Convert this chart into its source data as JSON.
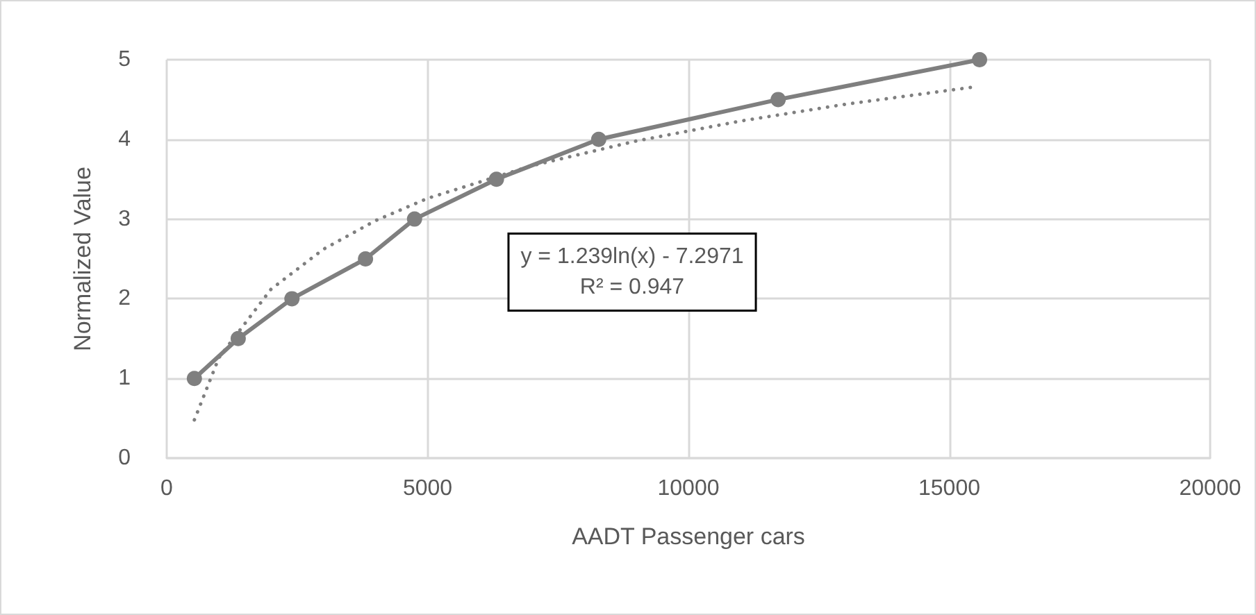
{
  "chart_data": {
    "type": "line",
    "xlabel": "AADT Passenger cars",
    "ylabel": "Normalized Value",
    "xlim": [
      0,
      20000
    ],
    "xticks": [
      0,
      5000,
      10000,
      15000,
      20000
    ],
    "ylim": [
      0,
      5
    ],
    "yticks": [
      0,
      1,
      2,
      3,
      4,
      5
    ],
    "grid": true,
    "series": [
      {
        "color": "#7f7f7f",
        "marker": "circle",
        "line_style": "solid",
        "x": [
          530,
          1370,
          2400,
          3810,
          4750,
          6320,
          8280,
          11720,
          15580
        ],
        "values": [
          1,
          1.5,
          2,
          2.5,
          3,
          3.5,
          4,
          4.5,
          5
        ]
      },
      {
        "color": "#7f7f7f",
        "marker": "none",
        "line_style": "dotted",
        "x": [
          530,
          1000,
          2000,
          3000,
          4000,
          5000,
          7000,
          9000,
          11000,
          13000,
          15500
        ],
        "values": [
          0.48,
          1.26,
          2.12,
          2.62,
          2.98,
          3.26,
          3.67,
          3.98,
          4.23,
          4.44,
          4.66
        ]
      }
    ],
    "annotations": [
      "y = 1.239ln(x) - 7.2971\nR² = 0.947"
    ]
  }
}
